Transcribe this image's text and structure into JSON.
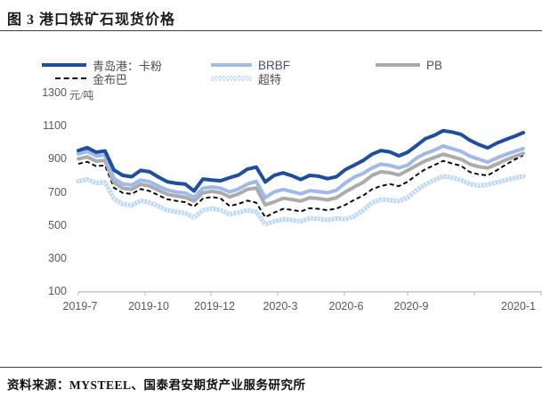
{
  "title": "图 3 港口铁矿石现货价格",
  "source": "资料来源：MYSTEEL、国泰君安期货产业服务研究所",
  "axis": {
    "unit_label": "元/吨",
    "y_ticks": [
      "1300",
      "1100",
      "900",
      "700",
      "500",
      "300",
      "100"
    ],
    "x_ticks": [
      "2019-7",
      "2019-10",
      "2019-12",
      "2020-3",
      "2020-6",
      "2020-9",
      "2020-1"
    ]
  },
  "legend": [
    {
      "label": "青岛港：卡粉",
      "style": "solid",
      "color": "#1f4e9c",
      "lang": "zh"
    },
    {
      "label": "BRBF",
      "style": "solid",
      "color": "#9fb9e8",
      "lang": "en"
    },
    {
      "label": "PB",
      "style": "solid",
      "color": "#ababab",
      "lang": "en"
    },
    {
      "label": "金布巴",
      "style": "dashed",
      "color": "#000000",
      "lang": "zh"
    },
    {
      "label": "超特",
      "style": "textured",
      "color": "#bdd7ee",
      "lang": "zh"
    }
  ],
  "chart_data": {
    "type": "line",
    "title": "港口铁矿石现货价格",
    "ylabel": "元/吨",
    "ylim": [
      100,
      1300
    ],
    "grid": false,
    "legend_position": "top",
    "x_labels": [
      "2019-7",
      "2019-10",
      "2019-12",
      "2020-3",
      "2020-6",
      "2020-9",
      "2020-1"
    ],
    "series": [
      {
        "name": "青岛港：卡粉",
        "style": "solid",
        "color": "#1f4e9c",
        "values": [
          950,
          968,
          940,
          948,
          832,
          800,
          792,
          830,
          822,
          790,
          762,
          752,
          748,
          706,
          778,
          772,
          768,
          786,
          802,
          838,
          850,
          760,
          800,
          815,
          798,
          775,
          800,
          795,
          780,
          792,
          835,
          862,
          890,
          928,
          950,
          942,
          918,
          940,
          980,
          1022,
          1042,
          1070,
          1062,
          1048,
          1012,
          986,
          966,
          994,
          1016,
          1036,
          1058
        ]
      },
      {
        "name": "BRBF",
        "style": "solid",
        "color": "#9fb9e8",
        "values": [
          930,
          944,
          918,
          922,
          782,
          748,
          742,
          772,
          762,
          735,
          712,
          700,
          694,
          668,
          722,
          730,
          722,
          700,
          718,
          748,
          764,
          665,
          700,
          715,
          702,
          688,
          708,
          702,
          695,
          710,
          755,
          790,
          812,
          845,
          868,
          860,
          845,
          862,
          905,
          932,
          952,
          978,
          962,
          945,
          916,
          898,
          880,
          905,
          926,
          944,
          962
        ]
      },
      {
        "name": "PB",
        "style": "solid",
        "color": "#ababab",
        "values": [
          900,
          912,
          886,
          890,
          756,
          722,
          716,
          746,
          736,
          710,
          686,
          676,
          668,
          645,
          694,
          704,
          695,
          670,
          688,
          716,
          724,
          622,
          640,
          662,
          655,
          645,
          665,
          660,
          652,
          665,
          700,
          730,
          758,
          800,
          822,
          816,
          802,
          830,
          860,
          888,
          908,
          928,
          913,
          898,
          868,
          852,
          845,
          868,
          893,
          913,
          933
        ]
      },
      {
        "name": "金布巴",
        "style": "dashed",
        "color": "#000000",
        "values": [
          870,
          882,
          856,
          860,
          726,
          694,
          688,
          718,
          706,
          680,
          656,
          646,
          638,
          612,
          660,
          670,
          660,
          615,
          628,
          648,
          635,
          548,
          575,
          598,
          592,
          582,
          602,
          598,
          590,
          600,
          622,
          652,
          678,
          716,
          736,
          748,
          735,
          762,
          802,
          838,
          862,
          888,
          872,
          858,
          820,
          806,
          800,
          830,
          864,
          894,
          922
        ]
      },
      {
        "name": "超特",
        "style": "textured",
        "color": "#bdd7ee",
        "values": [
          765,
          776,
          754,
          758,
          660,
          626,
          620,
          648,
          636,
          614,
          590,
          580,
          572,
          545,
          590,
          600,
          590,
          565,
          575,
          590,
          580,
          505,
          522,
          535,
          530,
          522,
          542,
          538,
          530,
          540,
          535,
          552,
          590,
          635,
          655,
          650,
          645,
          665,
          710,
          745,
          772,
          795,
          786,
          772,
          748,
          738,
          744,
          758,
          772,
          784,
          794
        ]
      }
    ]
  }
}
